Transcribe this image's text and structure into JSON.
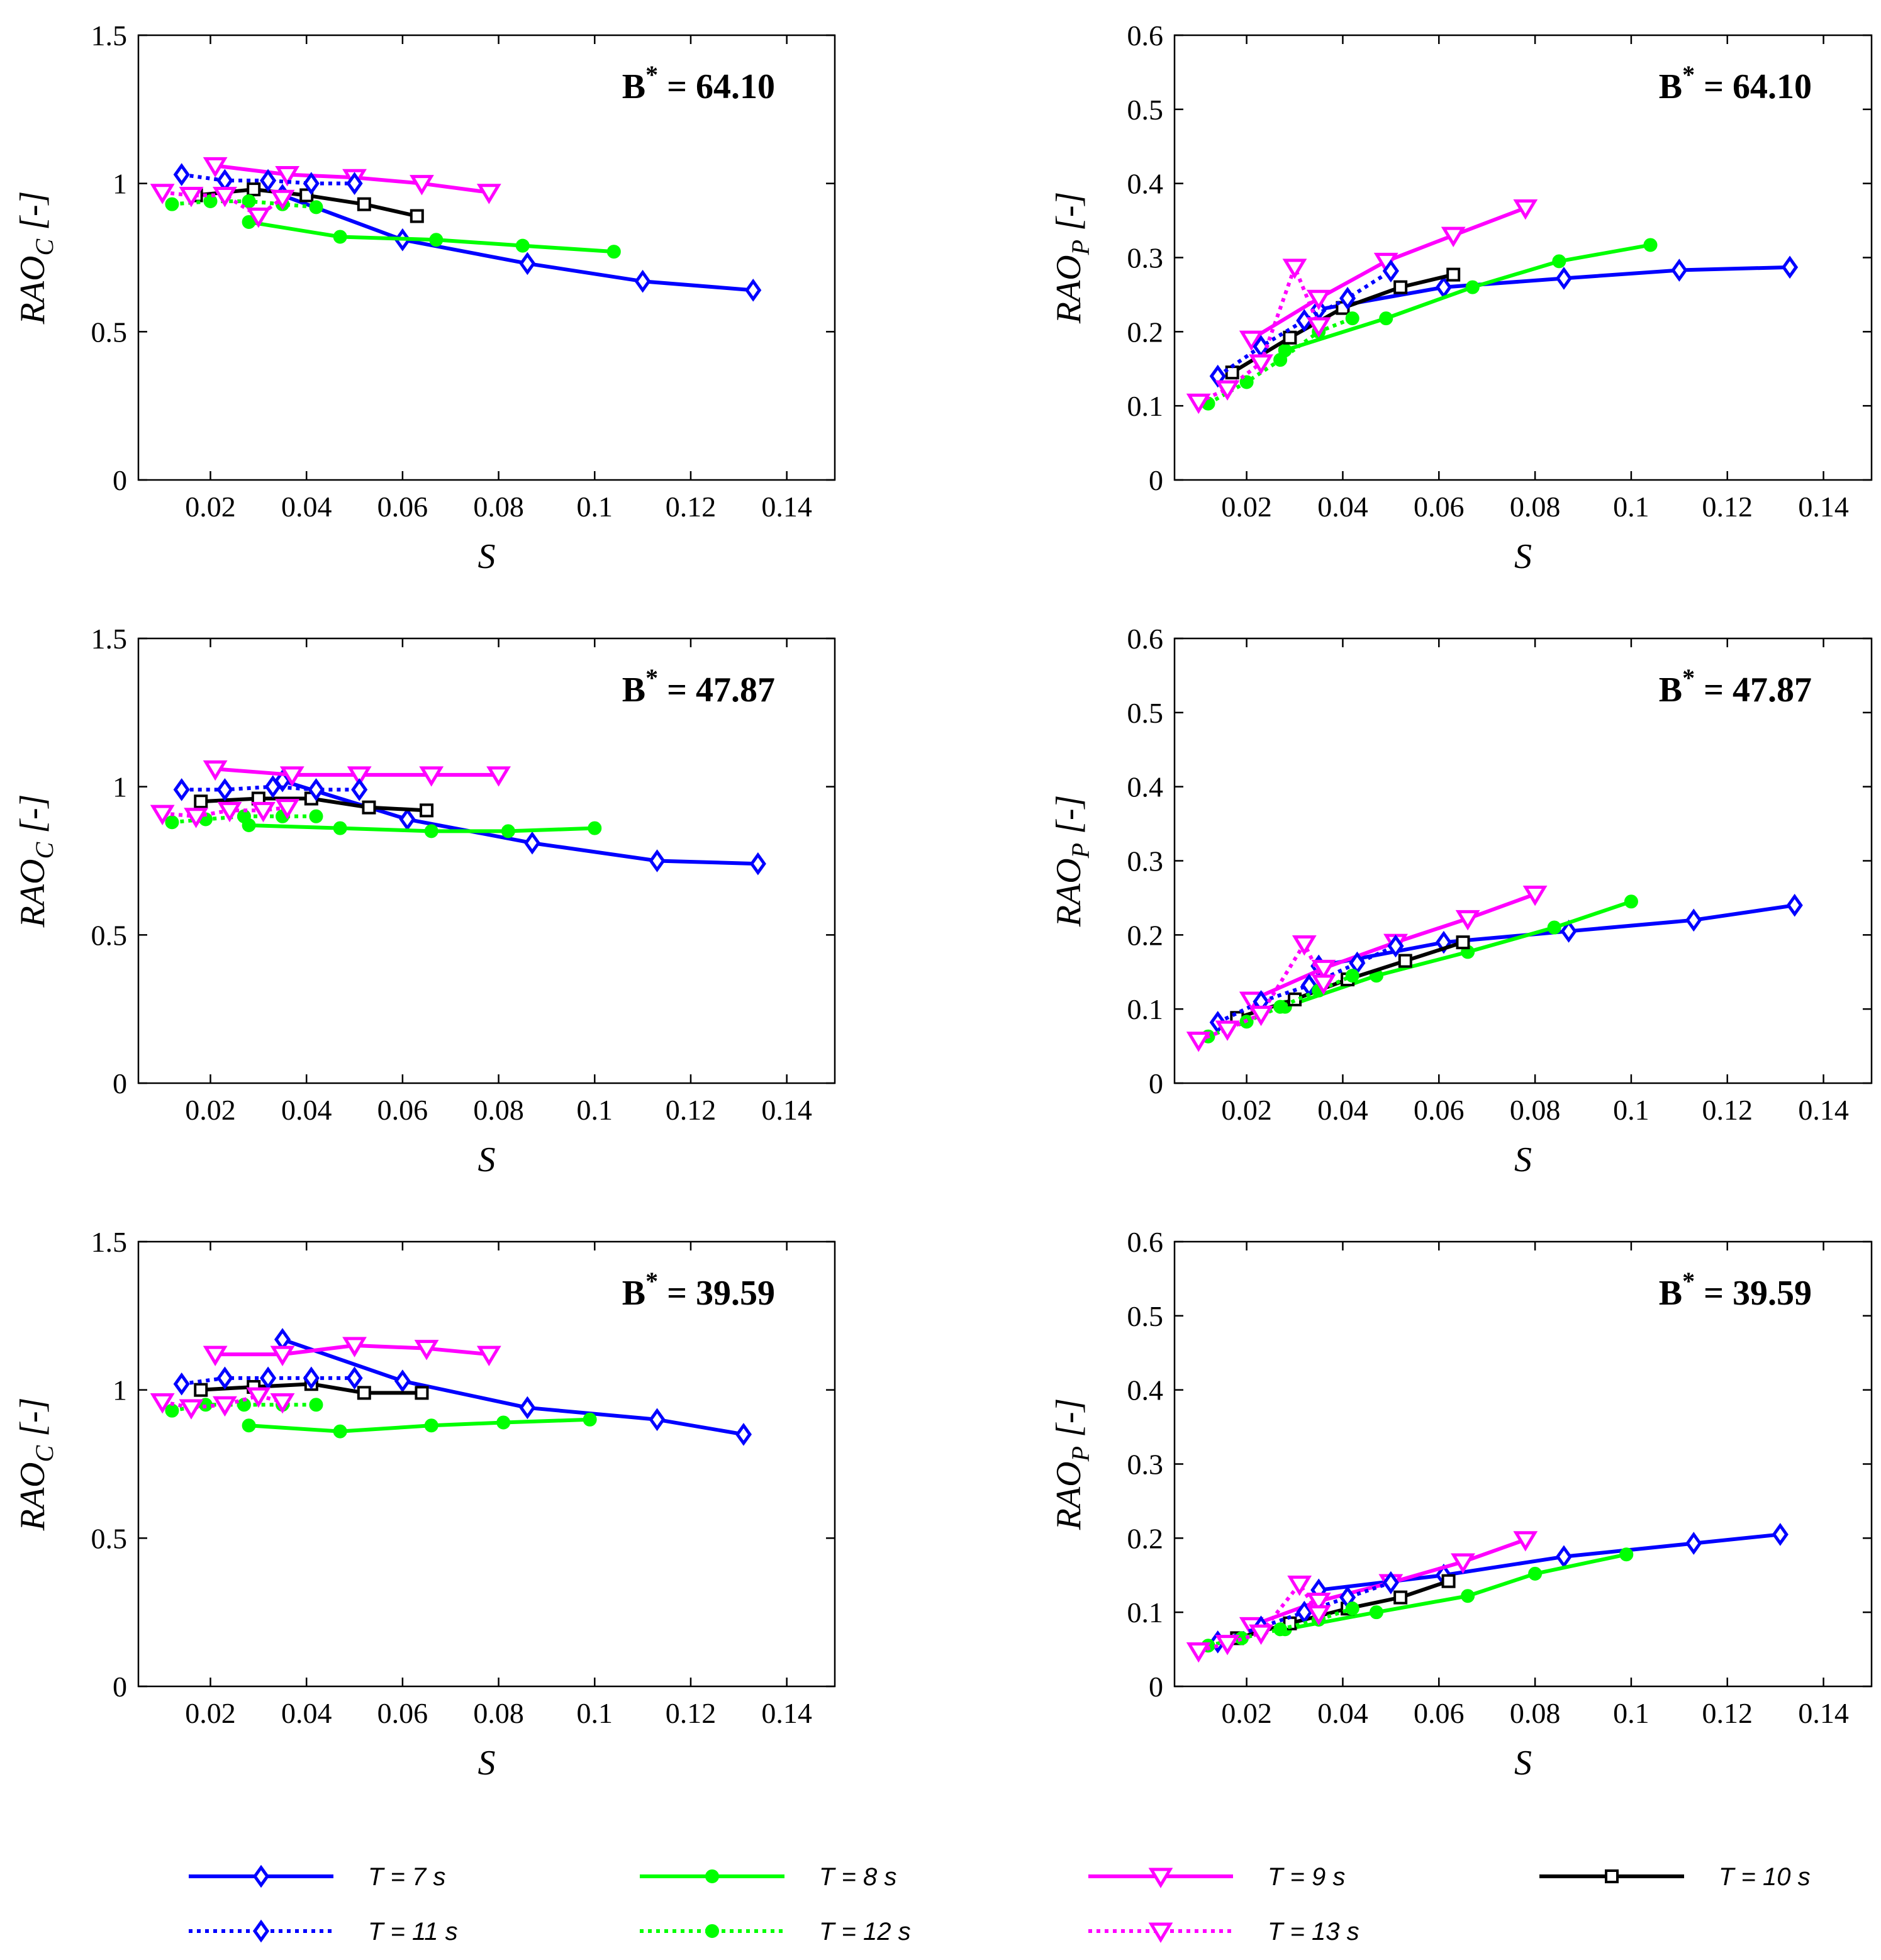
{
  "chart_data": [
    {
      "id": "rao-c-64-10",
      "type": "line",
      "title": "",
      "annotation": {
        "base": "B",
        "sup": "*",
        "rest": " = 64.10"
      },
      "ylabel": {
        "main": "RAO",
        "sub": "C",
        "rest": " [-]"
      },
      "xlabel": "S",
      "xlim": [
        0.005,
        0.15
      ],
      "ylim": [
        0,
        1.5
      ],
      "xticks": [
        "0.02",
        "0.04",
        "0.06",
        "0.08",
        "0.1",
        "0.12",
        "0.14"
      ],
      "yticks": [
        "0",
        "0.5",
        "1",
        "1.5"
      ],
      "series": [
        {
          "name": "T = 7 s",
          "x": [
            0.035,
            0.06,
            0.086,
            0.11,
            0.133
          ],
          "values": [
            0.96,
            0.81,
            0.73,
            0.67,
            0.64
          ]
        },
        {
          "name": "T = 8 s",
          "x": [
            0.028,
            0.047,
            0.067,
            0.085,
            0.104
          ],
          "values": [
            0.87,
            0.82,
            0.81,
            0.79,
            0.77
          ]
        },
        {
          "name": "T = 9 s",
          "x": [
            0.021,
            0.036,
            0.05,
            0.064,
            0.078
          ],
          "values": [
            1.06,
            1.03,
            1.02,
            1.0,
            0.97
          ]
        },
        {
          "name": "T = 10 s",
          "x": [
            0.017,
            0.029,
            0.04,
            0.052,
            0.063
          ],
          "values": [
            0.96,
            0.98,
            0.96,
            0.93,
            0.89
          ]
        },
        {
          "name": "T = 11 s",
          "x": [
            0.014,
            0.023,
            0.032,
            0.041,
            0.05
          ],
          "values": [
            1.03,
            1.01,
            1.01,
            1.0,
            1.0
          ]
        },
        {
          "name": "T = 12 s",
          "x": [
            0.012,
            0.02,
            0.028,
            0.035,
            0.042
          ],
          "values": [
            0.93,
            0.94,
            0.94,
            0.93,
            0.92
          ]
        },
        {
          "name": "T = 13 s",
          "x": [
            0.01,
            0.016,
            0.023,
            0.03,
            0.035
          ],
          "values": [
            0.97,
            0.96,
            0.96,
            0.89,
            0.95
          ]
        }
      ]
    },
    {
      "id": "rao-p-64-10",
      "type": "line",
      "title": "",
      "annotation": {
        "base": "B",
        "sup": "*",
        "rest": " = 64.10"
      },
      "ylabel": {
        "main": "RAO",
        "sub": "P",
        "rest": " [-]"
      },
      "xlabel": "S",
      "xlim": [
        0.005,
        0.15
      ],
      "ylim": [
        0,
        0.6
      ],
      "xticks": [
        "0.02",
        "0.04",
        "0.06",
        "0.08",
        "0.1",
        "0.12",
        "0.14"
      ],
      "yticks": [
        "0",
        "0.1",
        "0.2",
        "0.3",
        "0.4",
        "0.5",
        "0.6"
      ],
      "series": [
        {
          "name": "T = 7 s",
          "x": [
            0.035,
            0.061,
            0.086,
            0.11,
            0.133
          ],
          "values": [
            0.23,
            0.26,
            0.272,
            0.283,
            0.287
          ]
        },
        {
          "name": "T = 8 s",
          "x": [
            0.028,
            0.049,
            0.067,
            0.085,
            0.104
          ],
          "values": [
            0.175,
            0.218,
            0.26,
            0.295,
            0.317
          ]
        },
        {
          "name": "T = 9 s",
          "x": [
            0.021,
            0.035,
            0.049,
            0.063,
            0.078
          ],
          "values": [
            0.19,
            0.245,
            0.295,
            0.33,
            0.367
          ]
        },
        {
          "name": "T = 10 s",
          "x": [
            0.017,
            0.029,
            0.04,
            0.052,
            0.063
          ],
          "values": [
            0.145,
            0.192,
            0.232,
            0.26,
            0.277
          ]
        },
        {
          "name": "T = 11 s",
          "x": [
            0.014,
            0.023,
            0.032,
            0.041,
            0.05
          ],
          "values": [
            0.14,
            0.18,
            0.215,
            0.245,
            0.282
          ]
        },
        {
          "name": "T = 12 s",
          "x": [
            0.012,
            0.02,
            0.027,
            0.035,
            0.042
          ],
          "values": [
            0.103,
            0.132,
            0.162,
            0.2,
            0.218
          ]
        },
        {
          "name": "T = 13 s",
          "x": [
            0.01,
            0.016,
            0.023,
            0.03,
            0.035
          ],
          "values": [
            0.105,
            0.123,
            0.158,
            0.287,
            0.208
          ]
        }
      ]
    },
    {
      "id": "rao-c-47-87",
      "type": "line",
      "title": "",
      "annotation": {
        "base": "B",
        "sup": "*",
        "rest": " = 47.87"
      },
      "ylabel": {
        "main": "RAO",
        "sub": "C",
        "rest": " [-]"
      },
      "xlabel": "S",
      "xlim": [
        0.005,
        0.15
      ],
      "ylim": [
        0,
        1.5
      ],
      "xticks": [
        "0.02",
        "0.04",
        "0.06",
        "0.08",
        "0.1",
        "0.12",
        "0.14"
      ],
      "yticks": [
        "0",
        "0.5",
        "1",
        "1.5"
      ],
      "series": [
        {
          "name": "T = 7 s",
          "x": [
            0.035,
            0.061,
            0.087,
            0.113,
            0.134
          ],
          "values": [
            1.02,
            0.89,
            0.81,
            0.75,
            0.74
          ]
        },
        {
          "name": "T = 8 s",
          "x": [
            0.028,
            0.047,
            0.066,
            0.082,
            0.1
          ],
          "values": [
            0.87,
            0.86,
            0.85,
            0.85,
            0.86
          ]
        },
        {
          "name": "T = 9 s",
          "x": [
            0.021,
            0.037,
            0.051,
            0.066,
            0.08
          ],
          "values": [
            1.06,
            1.04,
            1.04,
            1.04,
            1.04
          ]
        },
        {
          "name": "T = 10 s",
          "x": [
            0.018,
            0.03,
            0.041,
            0.053,
            0.065
          ],
          "values": [
            0.95,
            0.96,
            0.96,
            0.93,
            0.92
          ]
        },
        {
          "name": "T = 11 s",
          "x": [
            0.014,
            0.023,
            0.033,
            0.042,
            0.051
          ],
          "values": [
            0.99,
            0.99,
            1.0,
            0.99,
            0.99
          ]
        },
        {
          "name": "T = 12 s",
          "x": [
            0.012,
            0.019,
            0.027,
            0.035,
            0.042
          ],
          "values": [
            0.88,
            0.89,
            0.9,
            0.9,
            0.9
          ]
        },
        {
          "name": "T = 13 s",
          "x": [
            0.01,
            0.017,
            0.024,
            0.031,
            0.036
          ],
          "values": [
            0.91,
            0.9,
            0.92,
            0.92,
            0.93
          ]
        }
      ]
    },
    {
      "id": "rao-p-47-87",
      "type": "line",
      "title": "",
      "annotation": {
        "base": "B",
        "sup": "*",
        "rest": " = 47.87"
      },
      "ylabel": {
        "main": "RAO",
        "sub": "P",
        "rest": " [-]"
      },
      "xlabel": "S",
      "xlim": [
        0.005,
        0.15
      ],
      "ylim": [
        0,
        0.6
      ],
      "xticks": [
        "0.02",
        "0.04",
        "0.06",
        "0.08",
        "0.1",
        "0.12",
        "0.14"
      ],
      "yticks": [
        "0",
        "0.1",
        "0.2",
        "0.3",
        "0.4",
        "0.5",
        "0.6"
      ],
      "series": [
        {
          "name": "T = 7 s",
          "x": [
            0.035,
            0.061,
            0.087,
            0.113,
            0.134
          ],
          "values": [
            0.158,
            0.19,
            0.205,
            0.22,
            0.24
          ]
        },
        {
          "name": "T = 8 s",
          "x": [
            0.028,
            0.047,
            0.066,
            0.084,
            0.1
          ],
          "values": [
            0.103,
            0.145,
            0.177,
            0.21,
            0.245
          ]
        },
        {
          "name": "T = 9 s",
          "x": [
            0.021,
            0.036,
            0.051,
            0.066,
            0.08
          ],
          "values": [
            0.112,
            0.155,
            0.19,
            0.222,
            0.255
          ]
        },
        {
          "name": "T = 10 s",
          "x": [
            0.018,
            0.03,
            0.041,
            0.053,
            0.065
          ],
          "values": [
            0.088,
            0.113,
            0.14,
            0.165,
            0.19
          ]
        },
        {
          "name": "T = 11 s",
          "x": [
            0.014,
            0.023,
            0.033,
            0.043,
            0.051
          ],
          "values": [
            0.082,
            0.11,
            0.132,
            0.162,
            0.185
          ]
        },
        {
          "name": "T = 12 s",
          "x": [
            0.012,
            0.02,
            0.027,
            0.035,
            0.042
          ],
          "values": [
            0.063,
            0.083,
            0.103,
            0.125,
            0.145
          ]
        },
        {
          "name": "T = 13 s",
          "x": [
            0.01,
            0.016,
            0.023,
            0.032,
            0.036
          ],
          "values": [
            0.058,
            0.073,
            0.093,
            0.188,
            0.135
          ]
        }
      ]
    },
    {
      "id": "rao-c-39-59",
      "type": "line",
      "title": "",
      "annotation": {
        "base": "B",
        "sup": "*",
        "rest": " = 39.59"
      },
      "ylabel": {
        "main": "RAO",
        "sub": "C",
        "rest": " [-]"
      },
      "xlabel": "S",
      "xlim": [
        0.005,
        0.15
      ],
      "ylim": [
        0,
        1.5
      ],
      "xticks": [
        "0.02",
        "0.04",
        "0.06",
        "0.08",
        "0.1",
        "0.12",
        "0.14"
      ],
      "yticks": [
        "0",
        "0.5",
        "1",
        "1.5"
      ],
      "series": [
        {
          "name": "T = 7 s",
          "x": [
            0.035,
            0.06,
            0.086,
            0.113,
            0.131
          ],
          "values": [
            1.17,
            1.03,
            0.94,
            0.9,
            0.85
          ]
        },
        {
          "name": "T = 8 s",
          "x": [
            0.028,
            0.047,
            0.066,
            0.081,
            0.099
          ],
          "values": [
            0.88,
            0.86,
            0.88,
            0.89,
            0.9
          ]
        },
        {
          "name": "T = 9 s",
          "x": [
            0.021,
            0.035,
            0.05,
            0.065,
            0.078
          ],
          "values": [
            1.12,
            1.12,
            1.15,
            1.14,
            1.12
          ]
        },
        {
          "name": "T = 10 s",
          "x": [
            0.018,
            0.029,
            0.041,
            0.052,
            0.064
          ],
          "values": [
            1.0,
            1.01,
            1.02,
            0.99,
            0.99
          ]
        },
        {
          "name": "T = 11 s",
          "x": [
            0.014,
            0.023,
            0.032,
            0.041,
            0.05
          ],
          "values": [
            1.02,
            1.04,
            1.04,
            1.04,
            1.04
          ]
        },
        {
          "name": "T = 12 s",
          "x": [
            0.012,
            0.019,
            0.027,
            0.035,
            0.042
          ],
          "values": [
            0.93,
            0.95,
            0.95,
            0.95,
            0.95
          ]
        },
        {
          "name": "T = 13 s",
          "x": [
            0.01,
            0.016,
            0.023,
            0.03,
            0.035
          ],
          "values": [
            0.96,
            0.94,
            0.95,
            0.98,
            0.96
          ]
        }
      ]
    },
    {
      "id": "rao-p-39-59",
      "type": "line",
      "title": "",
      "annotation": {
        "base": "B",
        "sup": "*",
        "rest": " = 39.59"
      },
      "ylabel": {
        "main": "RAO",
        "sub": "P",
        "rest": " [-]"
      },
      "xlabel": "S",
      "xlim": [
        0.005,
        0.15
      ],
      "ylim": [
        0,
        0.6
      ],
      "xticks": [
        "0.02",
        "0.04",
        "0.06",
        "0.08",
        "0.1",
        "0.12",
        "0.14"
      ],
      "yticks": [
        "0",
        "0.1",
        "0.2",
        "0.3",
        "0.4",
        "0.5",
        "0.6"
      ],
      "series": [
        {
          "name": "T = 7 s",
          "x": [
            0.035,
            0.061,
            0.086,
            0.113,
            0.131
          ],
          "values": [
            0.13,
            0.15,
            0.175,
            0.193,
            0.205
          ]
        },
        {
          "name": "T = 8 s",
          "x": [
            0.028,
            0.047,
            0.066,
            0.08,
            0.099
          ],
          "values": [
            0.077,
            0.1,
            0.122,
            0.152,
            0.178
          ]
        },
        {
          "name": "T = 9 s",
          "x": [
            0.021,
            0.035,
            0.05,
            0.065,
            0.078
          ],
          "values": [
            0.082,
            0.115,
            0.14,
            0.168,
            0.198
          ]
        },
        {
          "name": "T = 10 s",
          "x": [
            0.018,
            0.029,
            0.041,
            0.052,
            0.062
          ],
          "values": [
            0.065,
            0.085,
            0.105,
            0.12,
            0.142
          ]
        },
        {
          "name": "T = 11 s",
          "x": [
            0.014,
            0.023,
            0.032,
            0.041,
            0.05
          ],
          "values": [
            0.06,
            0.08,
            0.1,
            0.12,
            0.14
          ]
        },
        {
          "name": "T = 12 s",
          "x": [
            0.012,
            0.019,
            0.027,
            0.035,
            0.042
          ],
          "values": [
            0.055,
            0.065,
            0.077,
            0.09,
            0.105
          ]
        },
        {
          "name": "T = 13 s",
          "x": [
            0.01,
            0.016,
            0.023,
            0.031,
            0.035
          ],
          "values": [
            0.048,
            0.058,
            0.072,
            0.138,
            0.098
          ]
        }
      ]
    }
  ],
  "legend": {
    "placement": "bottom",
    "entries": [
      {
        "label": "T = 7 s",
        "color": "#0000ff",
        "style": "solid",
        "marker": "diamond"
      },
      {
        "label": "T = 8 s",
        "color": "#00ff00",
        "style": "solid",
        "marker": "circle"
      },
      {
        "label": "T = 9 s",
        "color": "#ff00ff",
        "style": "solid",
        "marker": "triangle-down"
      },
      {
        "label": "T = 10 s",
        "color": "#000000",
        "style": "solid",
        "marker": "square"
      },
      {
        "label": "T = 11 s",
        "color": "#0000ff",
        "style": "dotted",
        "marker": "diamond"
      },
      {
        "label": "T = 12 s",
        "color": "#00ff00",
        "style": "dotted",
        "marker": "circle"
      },
      {
        "label": "T = 13 s",
        "color": "#ff00ff",
        "style": "dotted",
        "marker": "triangle-down"
      }
    ]
  }
}
